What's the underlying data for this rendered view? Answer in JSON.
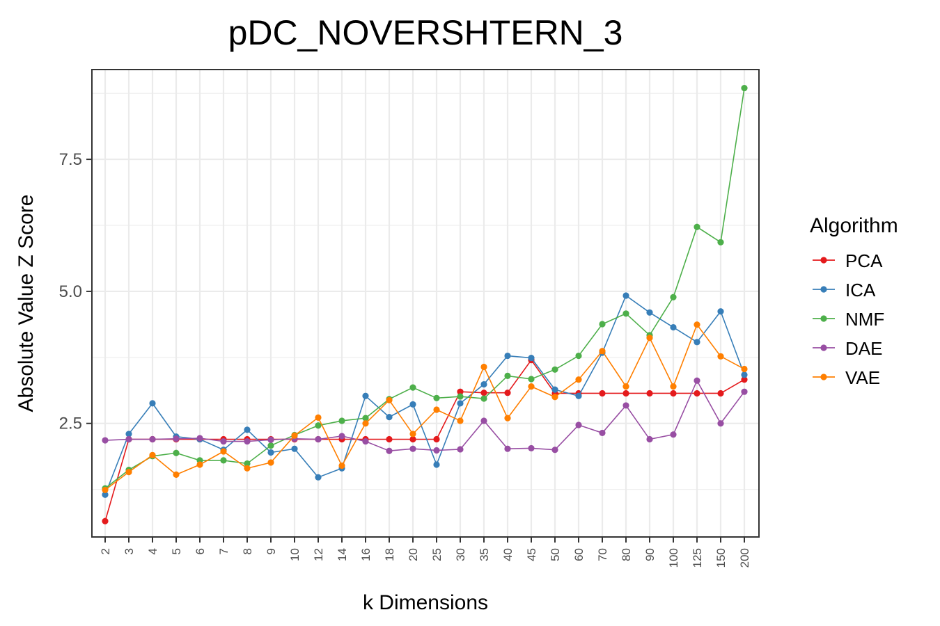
{
  "chart_data": {
    "type": "line",
    "title": "pDC_NOVERSHTERN_3",
    "xlabel": "k Dimensions",
    "ylabel": "Absolute Value Z Score",
    "categories": [
      "2",
      "3",
      "4",
      "5",
      "6",
      "7",
      "8",
      "9",
      "10",
      "12",
      "14",
      "16",
      "18",
      "20",
      "25",
      "30",
      "35",
      "40",
      "45",
      "50",
      "60",
      "70",
      "80",
      "90",
      "100",
      "125",
      "150",
      "200"
    ],
    "ylim": [
      0.35,
      9.2
    ],
    "yticks": [
      2.5,
      5.0,
      7.5
    ],
    "ytick_labels": [
      "2.5",
      "5.0",
      "7.5"
    ],
    "grid": true,
    "legend": {
      "title": "Algorithm",
      "position": "right"
    },
    "series": [
      {
        "name": "PCA",
        "color": "#e41a1c",
        "values": [
          0.65,
          2.2,
          2.2,
          2.2,
          2.2,
          2.2,
          2.2,
          2.2,
          2.2,
          2.2,
          2.2,
          2.2,
          2.2,
          2.2,
          2.2,
          3.1,
          3.08,
          3.08,
          3.7,
          3.07,
          3.07,
          3.07,
          3.07,
          3.07,
          3.07,
          3.07,
          3.07,
          3.33
        ]
      },
      {
        "name": "ICA",
        "color": "#377eb8",
        "values": [
          1.15,
          2.3,
          2.88,
          2.25,
          2.2,
          2.0,
          2.38,
          1.95,
          2.02,
          1.48,
          1.65,
          3.02,
          2.62,
          2.86,
          1.72,
          2.88,
          3.24,
          3.78,
          3.74,
          3.14,
          3.02,
          3.84,
          4.92,
          4.6,
          4.32,
          4.04,
          4.62,
          3.42
        ]
      },
      {
        "name": "NMF",
        "color": "#4daf4a",
        "values": [
          1.27,
          1.62,
          1.88,
          1.94,
          1.8,
          1.8,
          1.74,
          2.08,
          2.28,
          2.46,
          2.55,
          2.6,
          2.96,
          3.18,
          2.98,
          3.01,
          2.97,
          3.4,
          3.34,
          3.52,
          3.78,
          4.38,
          4.58,
          4.17,
          4.89,
          6.22,
          5.93,
          8.85
        ]
      },
      {
        "name": "DAE",
        "color": "#984ea3",
        "values": [
          2.18,
          2.2,
          2.2,
          2.21,
          2.22,
          2.16,
          2.16,
          2.19,
          2.21,
          2.2,
          2.26,
          2.16,
          1.98,
          2.02,
          1.99,
          2.01,
          2.55,
          2.02,
          2.03,
          2.0,
          2.47,
          2.32,
          2.84,
          2.2,
          2.29,
          3.31,
          2.5,
          3.1
        ]
      },
      {
        "name": "VAE",
        "color": "#ff7f00",
        "values": [
          1.24,
          1.58,
          1.9,
          1.53,
          1.72,
          1.97,
          1.65,
          1.76,
          2.27,
          2.61,
          1.7,
          2.5,
          2.94,
          2.3,
          2.76,
          2.55,
          3.57,
          2.6,
          3.2,
          3.0,
          3.33,
          3.87,
          3.2,
          4.12,
          3.2,
          4.37,
          3.77,
          3.53
        ]
      }
    ]
  }
}
